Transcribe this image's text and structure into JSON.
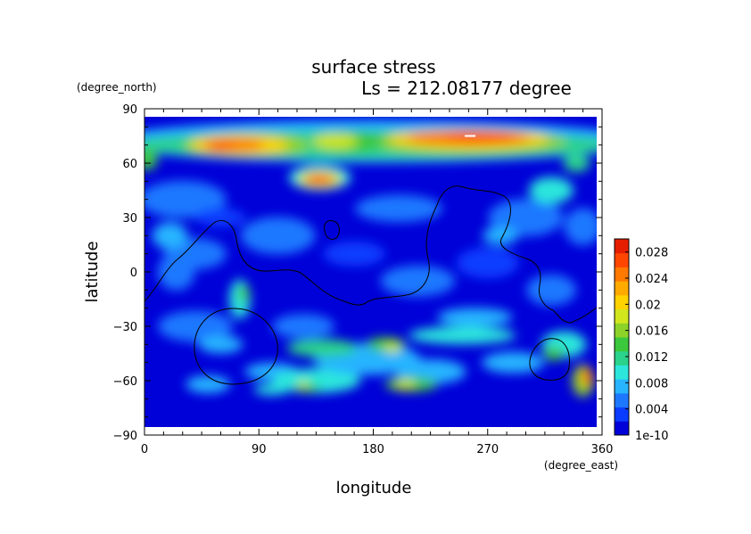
{
  "chart_data": {
    "type": "heatmap",
    "title": "surface stress",
    "subtitle": "Ls = 212.08177 degree",
    "xlabel": "longitude",
    "ylabel": "latitude",
    "x_unit": "(degree_east)",
    "y_unit": "(degree_north)",
    "xlim": [
      0,
      360
    ],
    "ylim": [
      -90,
      90
    ],
    "x_ticks": [
      "0",
      "90",
      "180",
      "270",
      "360"
    ],
    "y_ticks": [
      "90",
      "60",
      "30",
      "0",
      "−30",
      "−60",
      "−90"
    ],
    "x_tick_values": [
      0,
      90,
      180,
      270,
      360
    ],
    "y_tick_values": [
      90,
      60,
      30,
      0,
      -30,
      -60,
      -90
    ],
    "colorbar": {
      "min": 1e-10,
      "max": 0.03,
      "labels": [
        "0.028",
        "0.024",
        "0.02",
        "0.016",
        "0.012",
        "0.008",
        "0.004",
        "1e-10"
      ],
      "label_values": [
        0.028,
        0.024,
        0.02,
        0.016,
        0.012,
        0.008,
        0.004,
        0.0
      ],
      "colors": [
        "#0000d8",
        "#0a3cff",
        "#1e78ff",
        "#28b4ff",
        "#2ce6dc",
        "#2ad28c",
        "#3cc83c",
        "#8cd228",
        "#d2e61e",
        "#ffd200",
        "#ffaa00",
        "#ff7800",
        "#ff4600",
        "#e61e00"
      ]
    },
    "hotspots": [
      {
        "lon": 70,
        "lat": 70,
        "value": 0.025
      },
      {
        "lon": 150,
        "lat": 72,
        "value": 0.022
      },
      {
        "lon": 255,
        "lat": 74,
        "value": 0.03
      },
      {
        "lon": 330,
        "lat": 72,
        "value": 0.018
      },
      {
        "lon": 138,
        "lat": 51,
        "value": 0.026
      },
      {
        "lon": 195,
        "lat": -42,
        "value": 0.014
      },
      {
        "lon": 205,
        "lat": -62,
        "value": 0.014
      },
      {
        "lon": 125,
        "lat": -62,
        "value": 0.013
      },
      {
        "lon": 350,
        "lat": -60,
        "value": 0.02
      },
      {
        "lon": 75,
        "lat": -15,
        "value": 0.01
      },
      {
        "lon": 320,
        "lat": -45,
        "value": 0.01
      },
      {
        "lon": 2,
        "lat": 62,
        "value": 0.014
      },
      {
        "lon": 340,
        "lat": 60,
        "value": 0.012
      }
    ]
  }
}
